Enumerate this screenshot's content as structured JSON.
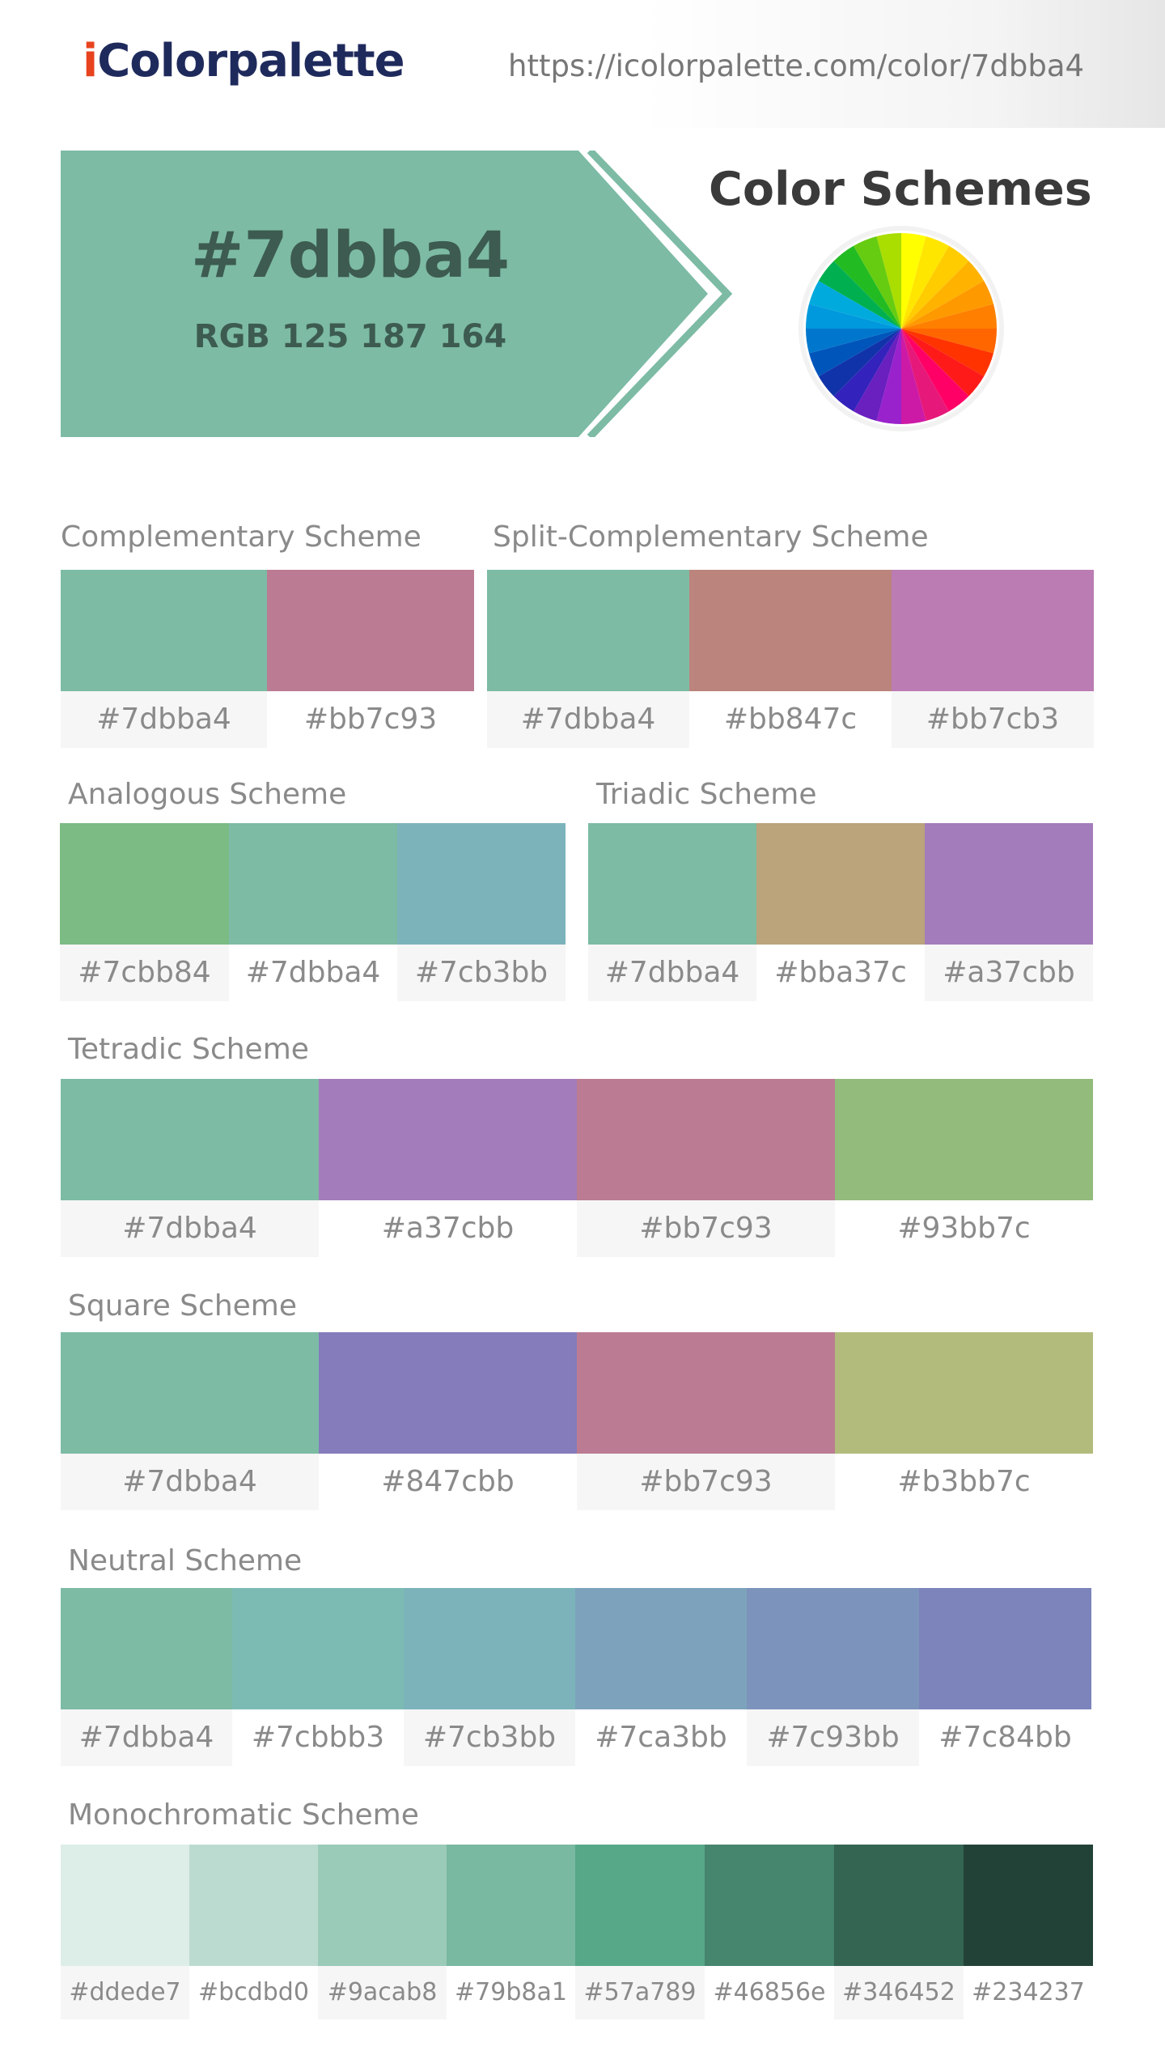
{
  "site": {
    "logo_i": "i",
    "logo_rest": "Colorpalette",
    "url": "https://icolorpalette.com/color/7dbba4"
  },
  "hero": {
    "hex_label": "#7dbba4",
    "rgb_label": "RGB 125 187 164",
    "color": "#7dbba4",
    "text_color": "#3d5b50"
  },
  "schemes_title": "Color Schemes",
  "wheel": {
    "colors": [
      "#ffff00",
      "#ffe600",
      "#ffcc00",
      "#ffb300",
      "#ff9900",
      "#ff8000",
      "#ff6600",
      "#ff3300",
      "#ff1a1a",
      "#ff0066",
      "#e6197a",
      "#cc1aa6",
      "#9922cc",
      "#6a1fbf",
      "#3322bb",
      "#1133aa",
      "#0055bb",
      "#0077cc",
      "#0099dd",
      "#00aadd",
      "#00b050",
      "#22bb22",
      "#66cc11",
      "#aadd00"
    ]
  },
  "schemes": {
    "complementary": {
      "title": "Complementary Scheme",
      "swatches": [
        {
          "hex": "#7dbba4",
          "label": "#7dbba4"
        },
        {
          "hex": "#bb7c93",
          "label": "#bb7c93"
        }
      ]
    },
    "split_complementary": {
      "title": "Split-Complementary Scheme",
      "swatches": [
        {
          "hex": "#7dbba4",
          "label": "#7dbba4"
        },
        {
          "hex": "#bb847c",
          "label": "#bb847c"
        },
        {
          "hex": "#bb7cb3",
          "label": "#bb7cb3"
        }
      ]
    },
    "analogous": {
      "title": "Analogous Scheme",
      "swatches": [
        {
          "hex": "#7cbb84",
          "label": "#7cbb84"
        },
        {
          "hex": "#7dbba4",
          "label": "#7dbba4"
        },
        {
          "hex": "#7cb3bb",
          "label": "#7cb3bb"
        }
      ]
    },
    "triadic": {
      "title": "Triadic Scheme",
      "swatches": [
        {
          "hex": "#7dbba4",
          "label": "#7dbba4"
        },
        {
          "hex": "#bba37c",
          "label": "#bba37c"
        },
        {
          "hex": "#a37cbb",
          "label": "#a37cbb"
        }
      ]
    },
    "tetradic": {
      "title": "Tetradic Scheme",
      "swatches": [
        {
          "hex": "#7dbba4",
          "label": "#7dbba4"
        },
        {
          "hex": "#a37cbb",
          "label": "#a37cbb"
        },
        {
          "hex": "#bb7c93",
          "label": "#bb7c93"
        },
        {
          "hex": "#93bb7c",
          "label": "#93bb7c"
        }
      ]
    },
    "square": {
      "title": "Square Scheme",
      "swatches": [
        {
          "hex": "#7dbba4",
          "label": "#7dbba4"
        },
        {
          "hex": "#847cbb",
          "label": "#847cbb"
        },
        {
          "hex": "#bb7c93",
          "label": "#bb7c93"
        },
        {
          "hex": "#b3bb7c",
          "label": "#b3bb7c"
        }
      ]
    },
    "neutral": {
      "title": "Neutral Scheme",
      "swatches": [
        {
          "hex": "#7dbba4",
          "label": "#7dbba4"
        },
        {
          "hex": "#7cbbb3",
          "label": "#7cbbb3"
        },
        {
          "hex": "#7cb3bb",
          "label": "#7cb3bb"
        },
        {
          "hex": "#7ca3bb",
          "label": "#7ca3bb"
        },
        {
          "hex": "#7c93bb",
          "label": "#7c93bb"
        },
        {
          "hex": "#7c84bb",
          "label": "#7c84bb"
        }
      ]
    },
    "monochromatic": {
      "title": "Monochromatic Scheme",
      "swatches": [
        {
          "hex": "#ddede7",
          "label": "#ddede7"
        },
        {
          "hex": "#bcdbd0",
          "label": "#bcdbd0"
        },
        {
          "hex": "#9acab8",
          "label": "#9acab8"
        },
        {
          "hex": "#79b8a1",
          "label": "#79b8a1"
        },
        {
          "hex": "#57a789",
          "label": "#57a789"
        },
        {
          "hex": "#46856e",
          "label": "#46856e"
        },
        {
          "hex": "#346452",
          "label": "#346452"
        },
        {
          "hex": "#234237",
          "label": "#234237"
        }
      ]
    }
  }
}
